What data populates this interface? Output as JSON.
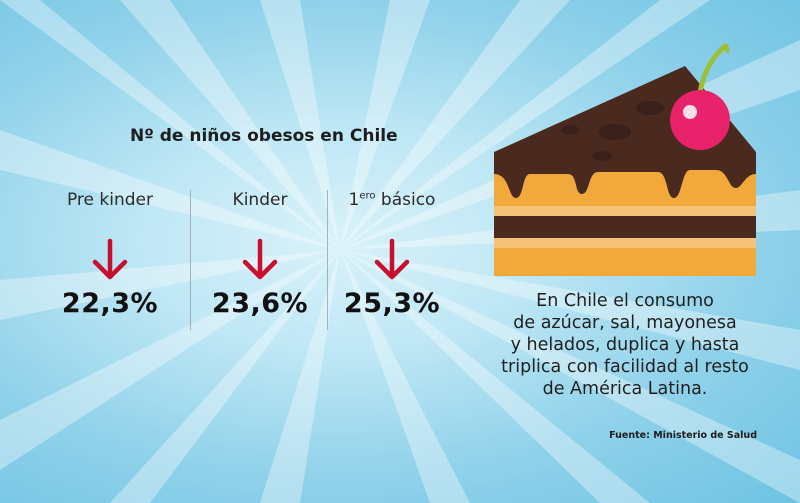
{
  "stats": {
    "title": "Nº de niños obesos en Chile",
    "columns": [
      {
        "label": "Pre kinder",
        "value": "22,3%"
      },
      {
        "label": "Kinder",
        "value": "23,6%"
      },
      {
        "label_main": "1",
        "label_sup": "ero",
        "label_rest": " básico",
        "value": "25,3%"
      }
    ]
  },
  "description": {
    "lines": [
      "En Chile el consumo",
      "de azúcar, sal, mayonesa",
      "y helados, duplica y hasta",
      "triplica con facilidad al resto",
      "de América Latina."
    ]
  },
  "source": "Fuente: Ministerio de Salud",
  "colors": {
    "arrow": "#c8102e",
    "cherry": "#e8236b",
    "chocolate": "#4a2a1f",
    "cake_light": "#f5c27a",
    "cake_orange": "#f2a93b"
  },
  "icons": {
    "arrow": "down-arrow-icon",
    "cake": "cake-slice-illustration"
  }
}
